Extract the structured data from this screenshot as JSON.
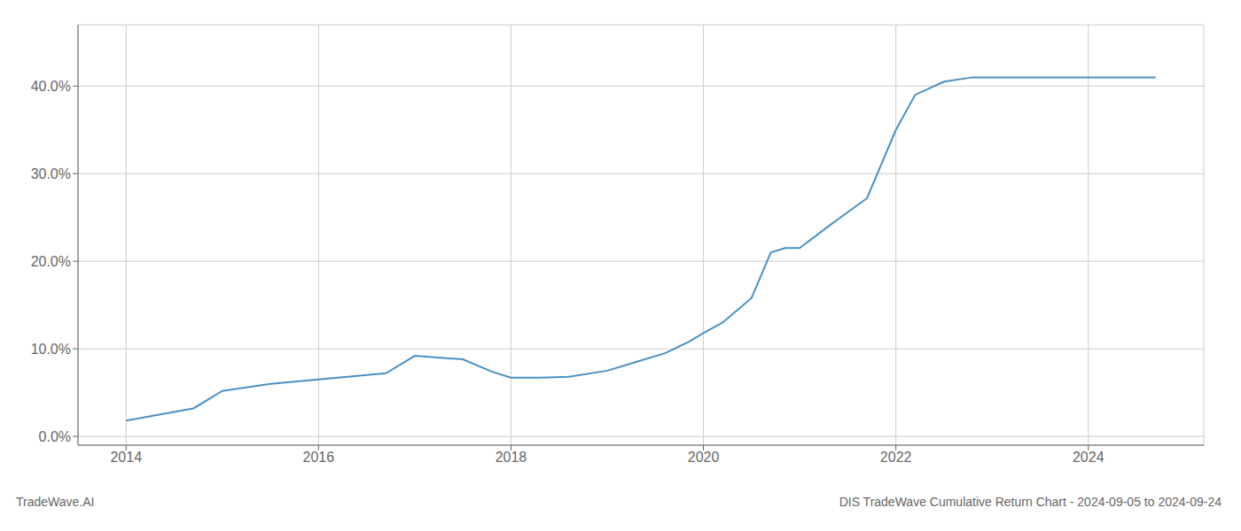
{
  "chart_data": {
    "type": "line",
    "title": "DIS TradeWave Cumulative Return Chart - 2024-09-05 to 2024-09-24",
    "subtitle": "TradeWave.AI",
    "x": [
      2014.0,
      2014.7,
      2015.0,
      2015.5,
      2016.0,
      2016.3,
      2016.7,
      2017.0,
      2017.5,
      2017.8,
      2018.0,
      2018.3,
      2018.6,
      2019.0,
      2019.3,
      2019.6,
      2019.85,
      2020.0,
      2020.2,
      2020.5,
      2020.7,
      2020.85,
      2021.0,
      2021.3,
      2021.7,
      2022.0,
      2022.2,
      2022.5,
      2022.8,
      2023.0,
      2023.5,
      2024.0,
      2024.7
    ],
    "values": [
      0.018,
      0.032,
      0.052,
      0.06,
      0.065,
      0.068,
      0.072,
      0.092,
      0.088,
      0.074,
      0.067,
      0.067,
      0.068,
      0.075,
      0.085,
      0.095,
      0.108,
      0.118,
      0.13,
      0.158,
      0.21,
      0.215,
      0.215,
      0.24,
      0.272,
      0.35,
      0.39,
      0.405,
      0.41,
      0.41,
      0.41,
      0.41,
      0.41
    ],
    "color": "#4a90c4",
    "xlim": [
      2013.5,
      2025.2
    ],
    "ylim": [
      -0.01,
      0.47
    ],
    "xticks": [
      2014,
      2016,
      2018,
      2020,
      2022,
      2024
    ],
    "yticks": [
      {
        "value": 0.0,
        "label": "0.0%"
      },
      {
        "value": 0.1,
        "label": "10.0%"
      },
      {
        "value": 0.2,
        "label": "20.0%"
      },
      {
        "value": 0.3,
        "label": "30.0%"
      },
      {
        "value": 0.4,
        "label": "40.0%"
      }
    ],
    "grid": true
  }
}
